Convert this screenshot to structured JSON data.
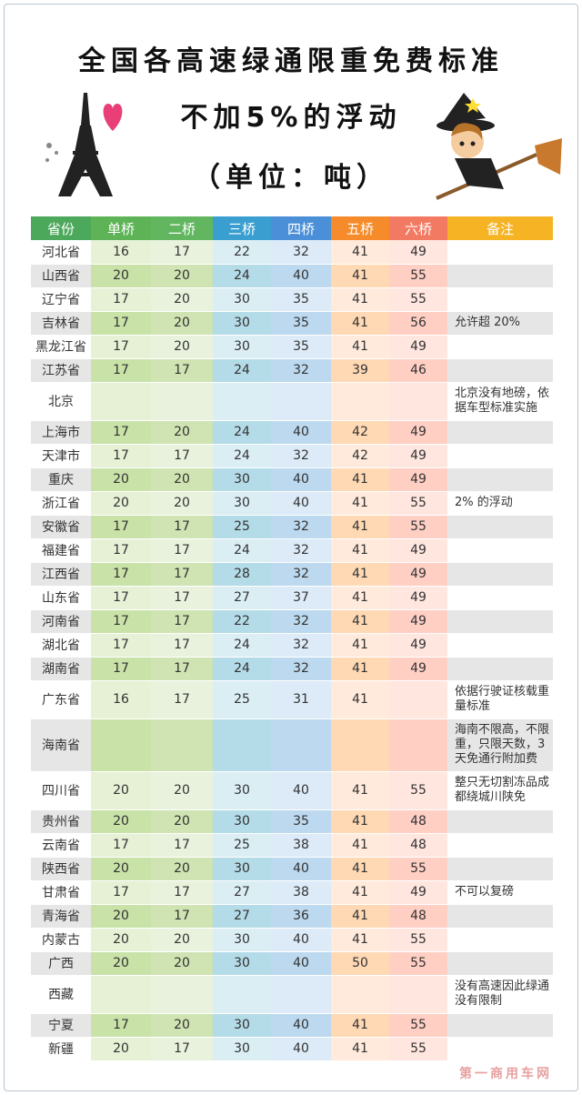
{
  "title": {
    "line1": "全国各高速绿通限重免费标准",
    "line2": "不加5%的浮动",
    "line3": "（单位：吨）"
  },
  "table": {
    "headers": [
      "省份",
      "单桥",
      "二桥",
      "三桥",
      "四桥",
      "五桥",
      "六桥",
      "备注"
    ],
    "rows": [
      {
        "province": "河北省",
        "v": [
          "16",
          "17",
          "22",
          "32",
          "41",
          "49"
        ],
        "note": ""
      },
      {
        "province": "山西省",
        "v": [
          "20",
          "20",
          "24",
          "40",
          "41",
          "55"
        ],
        "note": ""
      },
      {
        "province": "辽宁省",
        "v": [
          "17",
          "20",
          "30",
          "35",
          "41",
          "55"
        ],
        "note": ""
      },
      {
        "province": "吉林省",
        "v": [
          "17",
          "20",
          "30",
          "35",
          "41",
          "56"
        ],
        "note": "允许超 20%"
      },
      {
        "province": "黑龙江省",
        "v": [
          "17",
          "20",
          "30",
          "35",
          "41",
          "49"
        ],
        "note": ""
      },
      {
        "province": "江苏省",
        "v": [
          "17",
          "17",
          "24",
          "32",
          "39",
          "46"
        ],
        "note": ""
      },
      {
        "province": "北京",
        "v": [
          "",
          "",
          "",
          "",
          "",
          ""
        ],
        "note": "北京没有地磅，依据车型标准实施"
      },
      {
        "province": "上海市",
        "v": [
          "17",
          "20",
          "24",
          "40",
          "42",
          "49"
        ],
        "note": ""
      },
      {
        "province": "天津市",
        "v": [
          "17",
          "17",
          "24",
          "32",
          "42",
          "49"
        ],
        "note": ""
      },
      {
        "province": "重庆",
        "v": [
          "20",
          "20",
          "30",
          "40",
          "41",
          "49"
        ],
        "note": ""
      },
      {
        "province": "浙江省",
        "v": [
          "20",
          "20",
          "30",
          "40",
          "41",
          "55"
        ],
        "note": "2% 的浮动"
      },
      {
        "province": "安徽省",
        "v": [
          "17",
          "17",
          "25",
          "32",
          "41",
          "55"
        ],
        "note": ""
      },
      {
        "province": "福建省",
        "v": [
          "17",
          "17",
          "24",
          "32",
          "41",
          "49"
        ],
        "note": ""
      },
      {
        "province": "江西省",
        "v": [
          "17",
          "17",
          "28",
          "32",
          "41",
          "49"
        ],
        "note": ""
      },
      {
        "province": "山东省",
        "v": [
          "17",
          "17",
          "27",
          "37",
          "41",
          "49"
        ],
        "note": ""
      },
      {
        "province": "河南省",
        "v": [
          "17",
          "17",
          "22",
          "32",
          "41",
          "49"
        ],
        "note": ""
      },
      {
        "province": "湖北省",
        "v": [
          "17",
          "17",
          "24",
          "32",
          "41",
          "49"
        ],
        "note": ""
      },
      {
        "province": "湖南省",
        "v": [
          "17",
          "17",
          "24",
          "32",
          "41",
          "49"
        ],
        "note": ""
      },
      {
        "province": "广东省",
        "v": [
          "16",
          "17",
          "25",
          "31",
          "41",
          ""
        ],
        "note": "依据行驶证核载重量标准"
      },
      {
        "province": "海南省",
        "v": [
          "",
          "",
          "",
          "",
          "",
          ""
        ],
        "note": "海南不限高，不限重，只限天数，3天免通行附加费"
      },
      {
        "province": "四川省",
        "v": [
          "20",
          "20",
          "30",
          "40",
          "41",
          "55"
        ],
        "note": "整只无切割冻品成都绕城川陕免"
      },
      {
        "province": "贵州省",
        "v": [
          "20",
          "20",
          "30",
          "35",
          "41",
          "48"
        ],
        "note": ""
      },
      {
        "province": "云南省",
        "v": [
          "17",
          "17",
          "25",
          "38",
          "41",
          "48"
        ],
        "note": ""
      },
      {
        "province": "陕西省",
        "v": [
          "20",
          "20",
          "30",
          "40",
          "41",
          "55"
        ],
        "note": ""
      },
      {
        "province": "甘肃省",
        "v": [
          "17",
          "17",
          "27",
          "38",
          "41",
          "49"
        ],
        "note": "不可以复磅"
      },
      {
        "province": "青海省",
        "v": [
          "20",
          "17",
          "27",
          "36",
          "41",
          "48"
        ],
        "note": ""
      },
      {
        "province": "内蒙古",
        "v": [
          "20",
          "20",
          "30",
          "40",
          "41",
          "55"
        ],
        "note": ""
      },
      {
        "province": "广西",
        "v": [
          "20",
          "20",
          "30",
          "40",
          "50",
          "55"
        ],
        "note": ""
      },
      {
        "province": "西藏",
        "v": [
          "",
          "",
          "",
          "",
          "",
          ""
        ],
        "note": "没有高速因此绿通没有限制"
      },
      {
        "province": "宁夏",
        "v": [
          "17",
          "20",
          "30",
          "40",
          "41",
          "55"
        ],
        "note": ""
      },
      {
        "province": "新疆",
        "v": [
          "20",
          "17",
          "30",
          "40",
          "41",
          "55"
        ],
        "note": ""
      }
    ]
  },
  "colors": {
    "accent_green": "#4ca85a",
    "accent_blue": "#3a9fd0",
    "accent_orange": "#f58b2a",
    "accent_yellow": "#f6b324"
  },
  "icons": [
    "eiffel-tower-icon",
    "heart-icon",
    "witch-on-broom-icon"
  ]
}
